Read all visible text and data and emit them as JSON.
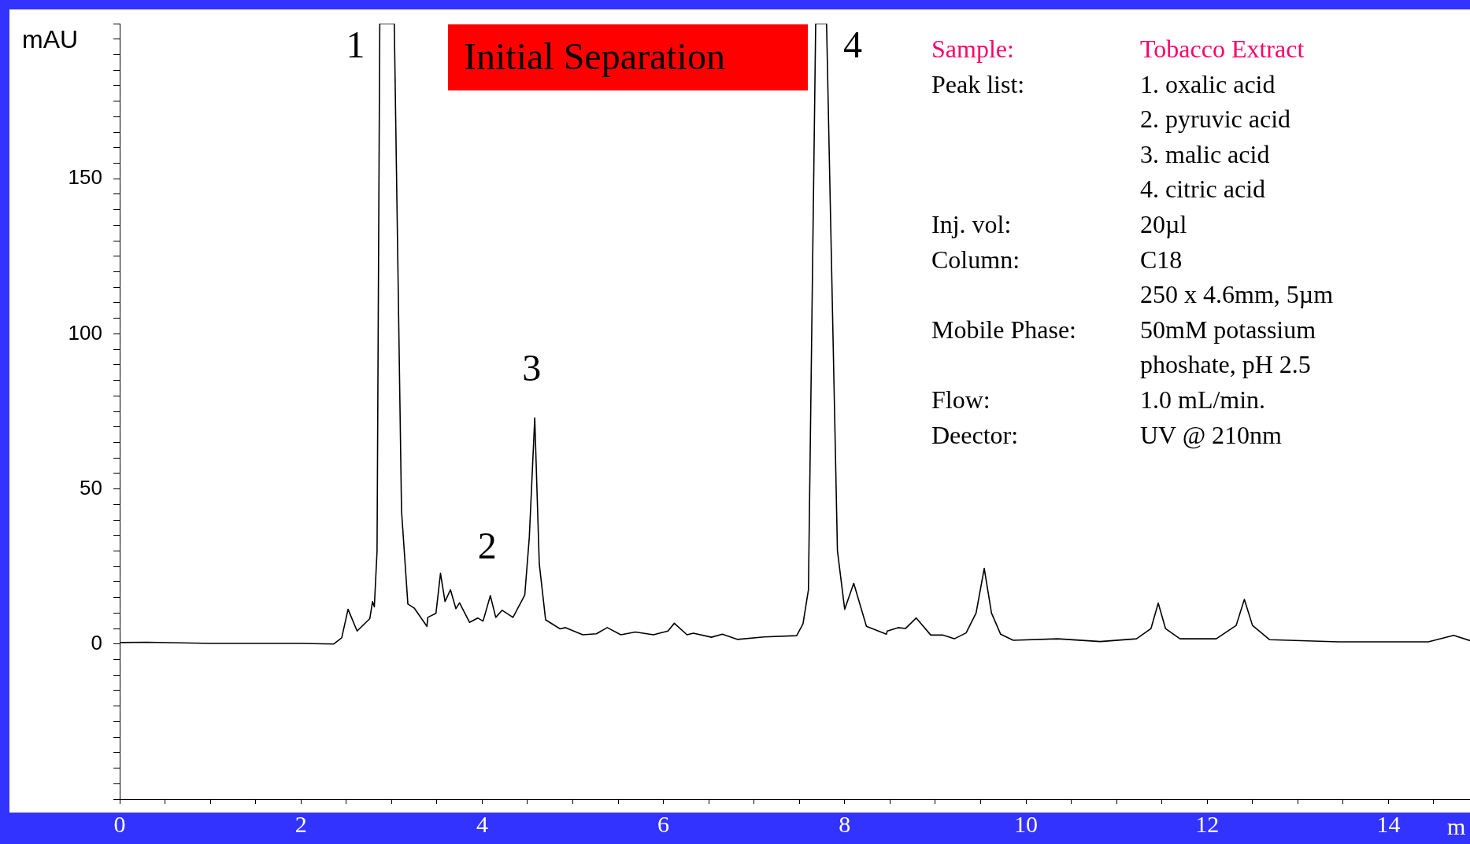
{
  "chart_data": {
    "type": "line",
    "title": "Initial Separation",
    "ylabel": "mAU",
    "xlabel": "m",
    "xlim": [
      0,
      14.9
    ],
    "ylim": [
      -50,
      200
    ],
    "xticks": [
      0,
      {
        "value": 0.5,
        "label": null
      },
      {
        "value": 1,
        "label": null
      },
      {
        "value": 1.5,
        "label": null
      },
      2,
      {
        "value": 2.5,
        "label": null
      },
      {
        "value": 3,
        "label": null
      },
      {
        "value": 3.5,
        "label": null
      },
      4,
      {
        "value": 4.5,
        "label": null
      },
      {
        "value": 5,
        "label": null
      },
      {
        "value": 5.5,
        "label": null
      },
      6,
      {
        "value": 6.5,
        "label": null
      },
      {
        "value": 7,
        "label": null
      },
      {
        "value": 7.5,
        "label": null
      },
      8,
      {
        "value": 8.5,
        "label": null
      },
      {
        "value": 9,
        "label": null
      },
      {
        "value": 9.5,
        "label": null
      },
      10,
      {
        "value": 10.5,
        "label": null
      },
      {
        "value": 11,
        "label": null
      },
      {
        "value": 11.5,
        "label": null
      },
      12,
      {
        "value": 12.5,
        "label": null
      },
      {
        "value": 13,
        "label": null
      },
      {
        "value": 13.5,
        "label": null
      },
      14,
      {
        "value": 14.5,
        "label": null
      }
    ],
    "yticks": [
      {
        "value": -50,
        "label": null
      },
      {
        "value": -45,
        "label": null
      },
      {
        "value": -40,
        "label": null
      },
      {
        "value": -35,
        "label": null
      },
      {
        "value": -30,
        "label": null
      },
      {
        "value": -25,
        "label": null
      },
      {
        "value": -20,
        "label": null
      },
      {
        "value": -15,
        "label": null
      },
      {
        "value": -10,
        "label": null
      },
      {
        "value": -5,
        "label": null
      },
      0,
      {
        "value": 5,
        "label": null
      },
      {
        "value": 10,
        "label": null
      },
      {
        "value": 15,
        "label": null
      },
      {
        "value": 20,
        "label": null
      },
      {
        "value": 25,
        "label": null
      },
      {
        "value": 30,
        "label": null
      },
      {
        "value": 35,
        "label": null
      },
      {
        "value": 40,
        "label": null
      },
      {
        "value": 45,
        "label": null
      },
      50,
      {
        "value": 55,
        "label": null
      },
      {
        "value": 60,
        "label": null
      },
      {
        "value": 65,
        "label": null
      },
      {
        "value": 70,
        "label": null
      },
      {
        "value": 75,
        "label": null
      },
      {
        "value": 80,
        "label": null
      },
      {
        "value": 85,
        "label": null
      },
      {
        "value": 90,
        "label": null
      },
      {
        "value": 95,
        "label": null
      },
      100,
      {
        "value": 105,
        "label": null
      },
      {
        "value": 110,
        "label": null
      },
      {
        "value": 115,
        "label": null
      },
      {
        "value": 120,
        "label": null
      },
      {
        "value": 125,
        "label": null
      },
      {
        "value": 130,
        "label": null
      },
      {
        "value": 135,
        "label": null
      },
      {
        "value": 140,
        "label": null
      },
      {
        "value": 145,
        "label": null
      },
      150,
      {
        "value": 155,
        "label": null
      },
      {
        "value": 160,
        "label": null
      },
      {
        "value": 165,
        "label": null
      },
      {
        "value": 170,
        "label": null
      },
      {
        "value": 175,
        "label": null
      },
      {
        "value": 180,
        "label": null
      },
      {
        "value": 185,
        "label": null
      },
      {
        "value": 190,
        "label": null
      },
      {
        "value": 195,
        "label": null
      },
      {
        "value": 200,
        "label": null
      }
    ],
    "grid": false,
    "legend": false,
    "series": [
      {
        "color": "#000000",
        "x": [
          0,
          0.3,
          1.0,
          2.0,
          2.36,
          2.45,
          2.52,
          2.62,
          2.76,
          2.79,
          2.81,
          2.84,
          2.87,
          2.95,
          3.03,
          3.11,
          3.18,
          3.25,
          3.39,
          3.4,
          3.49,
          3.54,
          3.59,
          3.65,
          3.71,
          3.75,
          3.86,
          3.95,
          4.01,
          4.09,
          4.15,
          4.22,
          4.34,
          4.47,
          4.52,
          4.58,
          4.63,
          4.7,
          4.86,
          4.92,
          5.11,
          5.26,
          5.38,
          5.53,
          5.69,
          5.89,
          6.05,
          6.12,
          6.26,
          6.33,
          6.53,
          6.65,
          6.82,
          7.11,
          7.47,
          7.54,
          7.6,
          7.68,
          7.74,
          7.8,
          7.92,
          8.0,
          8.1,
          8.24,
          8.46,
          8.47,
          8.59,
          8.67,
          8.79,
          8.95,
          9.08,
          9.21,
          9.34,
          9.45,
          9.54,
          9.62,
          9.72,
          9.86,
          10.35,
          10.82,
          11.22,
          11.38,
          11.46,
          11.54,
          11.7,
          12.1,
          12.32,
          12.41,
          12.5,
          12.69,
          13.45,
          14.44,
          14.72,
          14.9
        ],
        "values": [
          0.5,
          0.6,
          0.2,
          0.2,
          0,
          2,
          11.2,
          4.2,
          8.2,
          13.7,
          12,
          30,
          200,
          200,
          200,
          43,
          12.9,
          11.6,
          5.7,
          8.6,
          9.9,
          22.8,
          13.7,
          17.5,
          11.4,
          13.3,
          7.0,
          8.4,
          7.4,
          15.6,
          8.6,
          10.9,
          8.6,
          15.8,
          34.4,
          72.9,
          25.9,
          7.8,
          4.9,
          5.3,
          3.0,
          3.3,
          5.3,
          3.0,
          3.9,
          3.0,
          4.2,
          6.7,
          3.0,
          3.5,
          2.2,
          3.2,
          1.5,
          2.3,
          2.7,
          6.5,
          17.5,
          200,
          200,
          200,
          30.1,
          11.2,
          19.6,
          5.7,
          3.2,
          4.2,
          5.3,
          5.0,
          8.4,
          2.9,
          2.9,
          1.7,
          3.6,
          10,
          24.4,
          10,
          3.2,
          1.2,
          1.7,
          0.8,
          1.7,
          5,
          13.2,
          5,
          1.7,
          1.7,
          6,
          14.4,
          6,
          1.4,
          0.7,
          0.7,
          2.8,
          1.1
        ]
      }
    ],
    "annotations": [
      {
        "text": "1",
        "x": 2.95,
        "y": 200
      },
      {
        "text": "2",
        "x": 4.09,
        "y": 15.6
      },
      {
        "text": "3",
        "x": 4.58,
        "y": 72.9
      },
      {
        "text": "4",
        "x": 7.74,
        "y": 200
      },
      "Sample:",
      "Tobacco Extract",
      "Peak list:",
      "1. oxalic acid",
      "2. pyruvic acid",
      "3. malic acid",
      "4. citric acid",
      "Inj. vol:",
      "20µl",
      "Column:",
      "C18",
      "250 x 4.6mm, 5µm",
      "Mobile Phase:",
      "50mM potassium",
      "phoshate, pH 2.5",
      "Flow:",
      "1.0 mL/min.",
      "Deector:",
      "UV @ 210nm"
    ]
  }
}
